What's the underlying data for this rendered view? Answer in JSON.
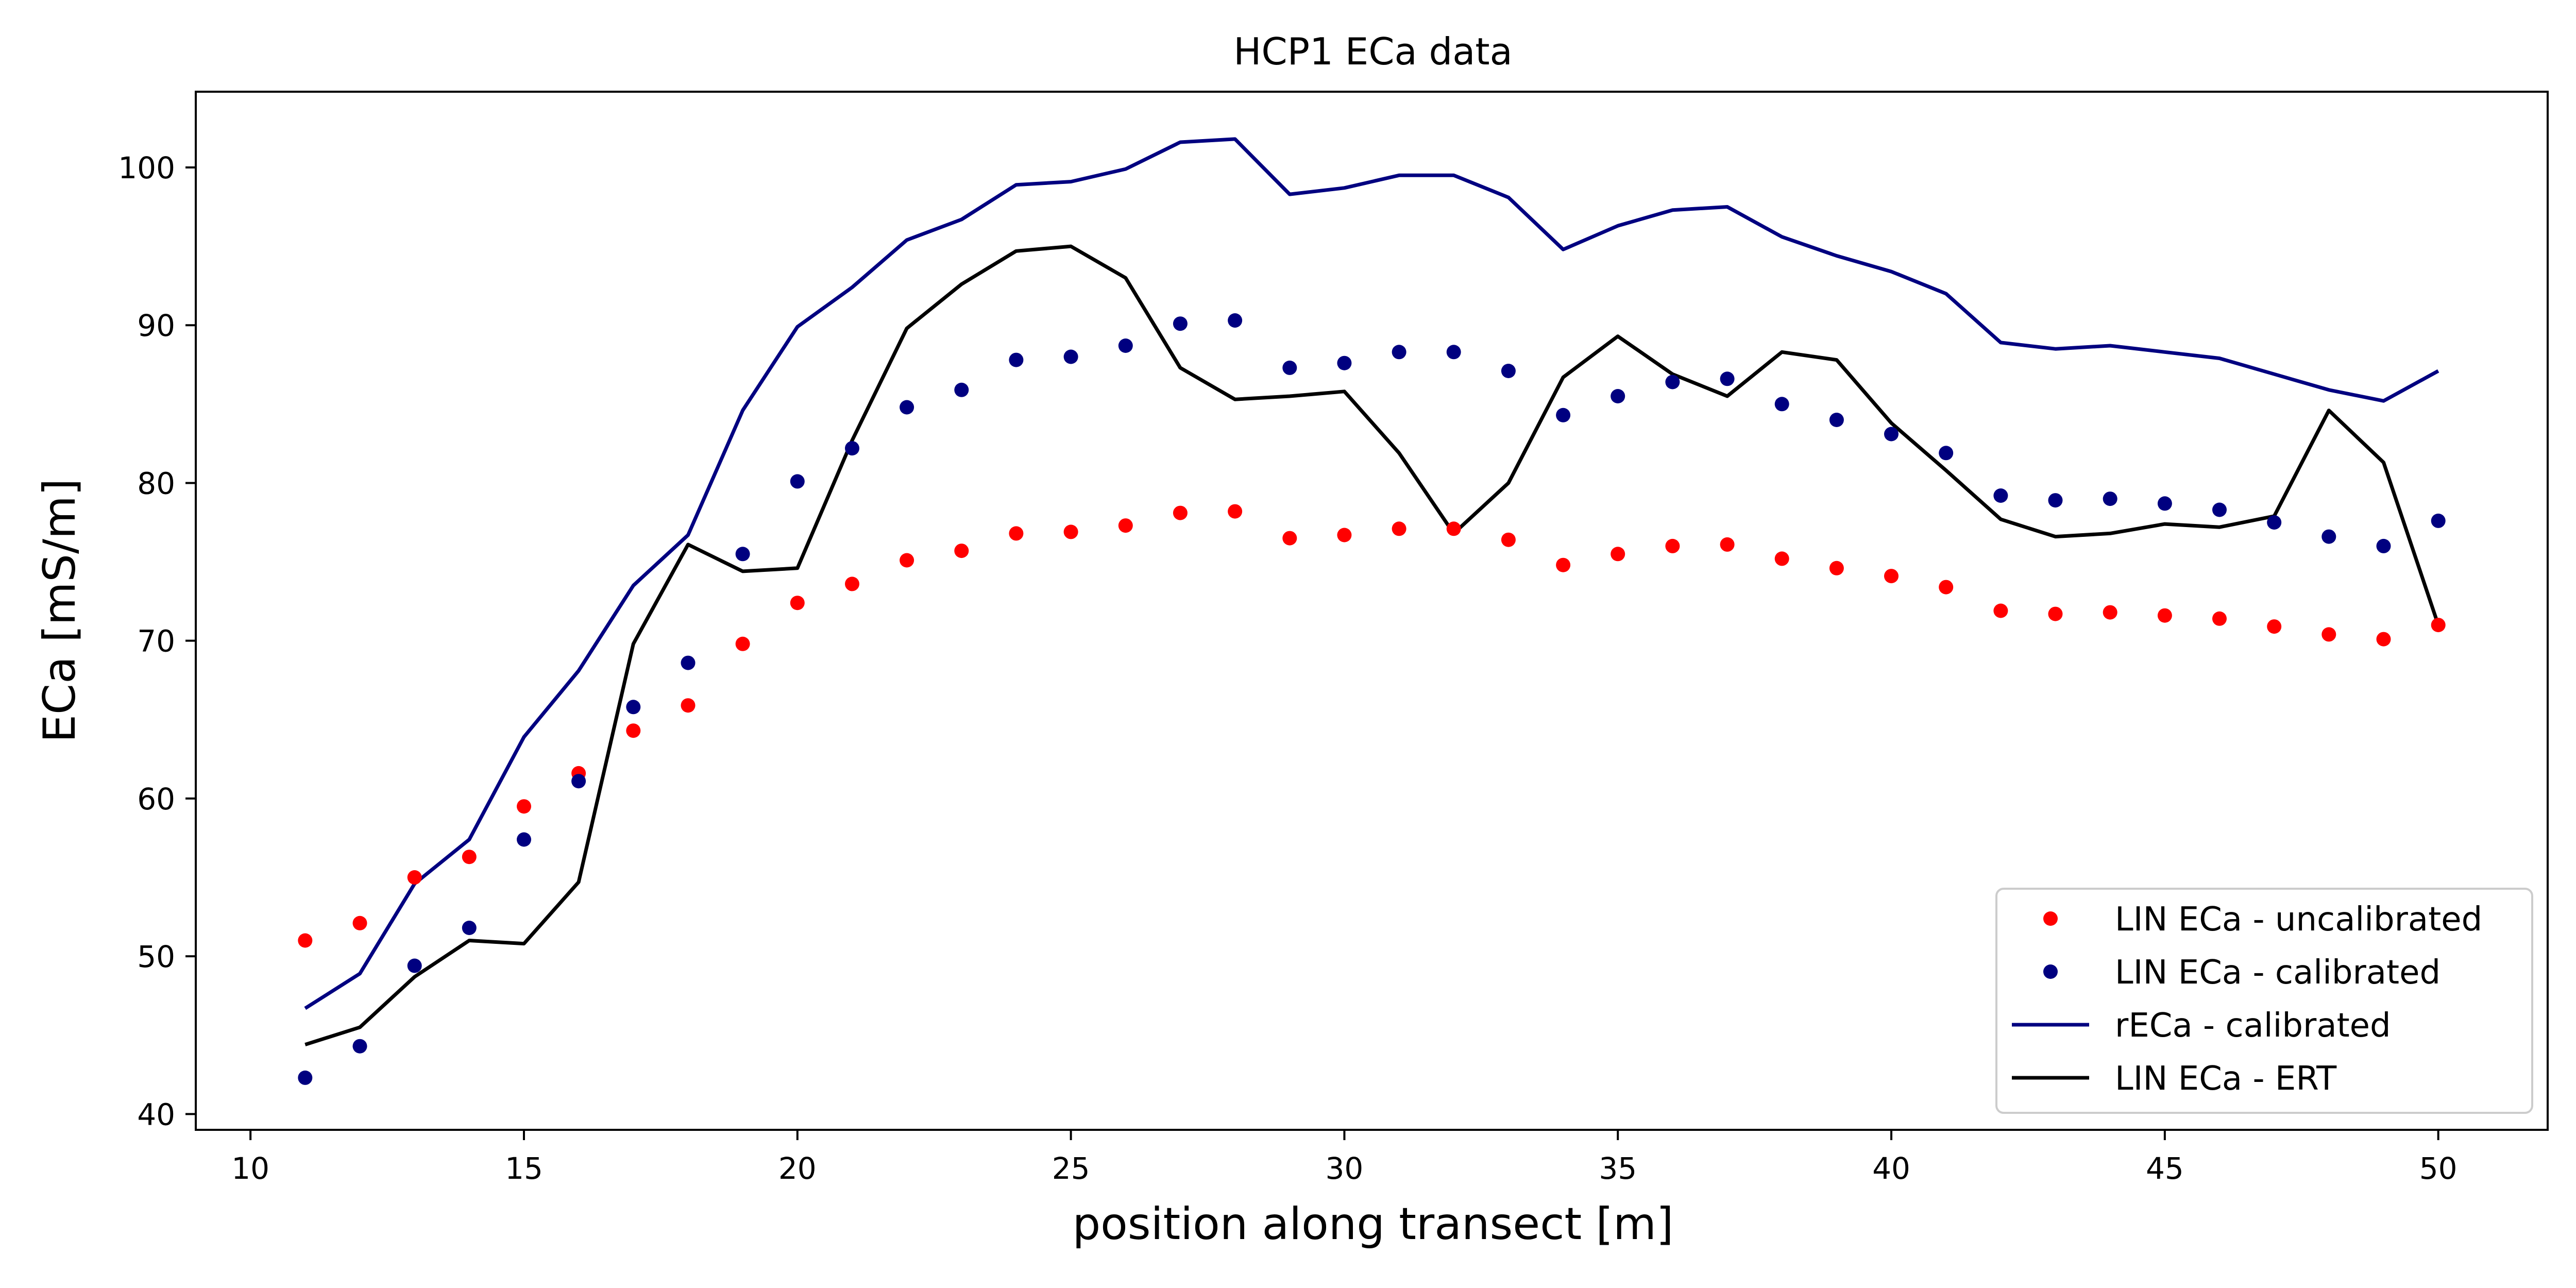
{
  "chart_data": {
    "type": "line",
    "title": "HCP1 ECa data",
    "xlabel": "position along transect [m]",
    "ylabel": "ECa [mS/m]",
    "xlim": [
      9,
      52
    ],
    "ylim": [
      39,
      104.8
    ],
    "xticks": [
      10,
      15,
      20,
      25,
      30,
      35,
      40,
      45,
      50
    ],
    "yticks": [
      40,
      50,
      60,
      70,
      80,
      90,
      100
    ],
    "grid": false,
    "legend_position": "lower-right",
    "x": [
      11,
      12,
      13,
      14,
      15,
      16,
      17,
      18,
      19,
      20,
      21,
      22,
      23,
      24,
      25,
      26,
      27,
      28,
      29,
      30,
      31,
      32,
      33,
      34,
      35,
      36,
      37,
      38,
      39,
      40,
      41,
      42,
      43,
      44,
      45,
      46,
      47,
      48,
      49,
      50
    ],
    "series": [
      {
        "name": "LIN ECa - uncalibrated",
        "style": "points",
        "color": "#ff0000",
        "values": [
          51.0,
          52.1,
          55.0,
          56.3,
          59.5,
          61.6,
          64.3,
          65.9,
          69.8,
          72.4,
          73.6,
          75.1,
          75.7,
          76.8,
          76.9,
          77.3,
          78.1,
          78.2,
          76.5,
          76.7,
          77.1,
          77.1,
          76.4,
          74.8,
          75.5,
          76.0,
          76.1,
          75.2,
          74.6,
          74.1,
          73.4,
          71.9,
          71.7,
          71.8,
          71.6,
          71.4,
          70.9,
          70.4,
          70.1,
          71.0
        ]
      },
      {
        "name": "LIN ECa - calibrated",
        "style": "points",
        "color": "#000080",
        "values": [
          42.3,
          44.3,
          49.4,
          51.8,
          57.4,
          61.1,
          65.8,
          68.6,
          75.5,
          80.1,
          82.2,
          84.8,
          85.9,
          87.8,
          88.0,
          88.7,
          90.1,
          90.3,
          87.3,
          87.6,
          88.3,
          88.3,
          87.1,
          84.3,
          85.5,
          86.4,
          86.6,
          85.0,
          84.0,
          83.1,
          81.9,
          79.2,
          78.9,
          79.0,
          78.7,
          78.3,
          77.5,
          76.6,
          76.0,
          77.6
        ]
      },
      {
        "name": "rECa - calibrated",
        "style": "line",
        "color": "#000080",
        "values": [
          46.7,
          48.9,
          54.6,
          57.4,
          63.9,
          68.1,
          73.5,
          76.7,
          84.6,
          89.9,
          92.4,
          95.4,
          96.7,
          98.9,
          99.1,
          99.9,
          101.6,
          101.8,
          98.3,
          98.7,
          99.5,
          99.5,
          98.1,
          94.8,
          96.3,
          97.3,
          97.5,
          95.6,
          94.4,
          93.4,
          92.0,
          88.9,
          88.5,
          88.7,
          88.3,
          87.9,
          86.9,
          85.9,
          85.2,
          87.1
        ]
      },
      {
        "name": "LIN ECa - ERT",
        "style": "line",
        "color": "#000000",
        "values": [
          44.4,
          45.5,
          48.7,
          51.0,
          50.8,
          54.7,
          69.8,
          76.1,
          74.4,
          74.6,
          82.7,
          89.8,
          92.6,
          94.7,
          95.0,
          93.0,
          87.3,
          85.3,
          85.5,
          85.8,
          81.9,
          76.8,
          80.0,
          86.7,
          89.3,
          86.9,
          85.5,
          88.3,
          87.8,
          83.8,
          80.8,
          77.7,
          76.6,
          76.8,
          77.4,
          77.2,
          77.9,
          84.6,
          81.3,
          71.0
        ]
      }
    ]
  }
}
